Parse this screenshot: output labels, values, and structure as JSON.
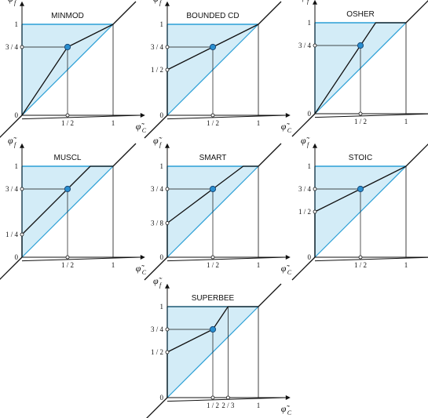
{
  "axes": {
    "x_label": "φ̃",
    "x_sub": "C",
    "y_label": "φ̃",
    "y_sub": "f"
  },
  "colors": {
    "region_fill": "#d3ecf7",
    "region_edge": "#2a9fd6",
    "limiter_line": "#111111",
    "point_fill": "#2a8fd0",
    "point_stroke": "#1a4a78"
  },
  "panels": [
    {
      "title": "MINMOD",
      "x_ticks": [
        {
          "label": "1 / 2",
          "value": 0.5
        },
        {
          "label": "1",
          "value": 1
        }
      ],
      "y_ticks": [
        {
          "label": "0",
          "value": 0
        },
        {
          "label": "3 / 4",
          "value": 0.75
        },
        {
          "label": "1",
          "value": 1
        }
      ],
      "limiter": [
        [
          -0.25,
          -0.25
        ],
        [
          0,
          0
        ],
        [
          0.5,
          0.75
        ],
        [
          1,
          1
        ],
        [
          1.25,
          1.25
        ]
      ],
      "point": [
        0.5,
        0.75
      ],
      "guides": [
        [
          0.5,
          0.75
        ]
      ],
      "x_markers": [
        0.5
      ],
      "y_markers": [
        0.75
      ]
    },
    {
      "title": "BOUNDED CD",
      "x_ticks": [
        {
          "label": "1 / 2",
          "value": 0.5
        },
        {
          "label": "1",
          "value": 1
        }
      ],
      "y_ticks": [
        {
          "label": "0",
          "value": 0
        },
        {
          "label": "1 / 2",
          "value": 0.5
        },
        {
          "label": "3 / 4",
          "value": 0.75
        },
        {
          "label": "1",
          "value": 1
        }
      ],
      "limiter": [
        [
          -0.25,
          -0.25
        ],
        [
          0,
          0
        ],
        [
          0,
          0.5
        ],
        [
          0.5,
          0.75
        ],
        [
          1,
          1
        ],
        [
          1.25,
          1.25
        ]
      ],
      "point": [
        0.5,
        0.75
      ],
      "guides": [
        [
          0.5,
          0.75
        ]
      ],
      "x_markers": [
        0.5
      ],
      "y_markers": [
        0.5,
        0.75
      ]
    },
    {
      "title": "OSHER",
      "x_ticks": [
        {
          "label": "1 / 2",
          "value": 0.5
        },
        {
          "label": "1",
          "value": 1
        }
      ],
      "y_ticks": [
        {
          "label": "0",
          "value": 0
        },
        {
          "label": "3 / 4",
          "value": 0.75
        },
        {
          "label": "1",
          "value": 1
        }
      ],
      "limiter": [
        [
          -0.25,
          -0.25
        ],
        [
          0,
          0
        ],
        [
          0.5,
          0.75
        ],
        [
          0.667,
          1
        ],
        [
          1,
          1
        ],
        [
          1.25,
          1.25
        ]
      ],
      "point": [
        0.5,
        0.75
      ],
      "guides": [
        [
          0.5,
          0.75
        ]
      ],
      "x_markers": [
        0.5
      ],
      "y_markers": [
        0.75
      ]
    },
    {
      "title": "MUSCL",
      "x_ticks": [
        {
          "label": "1 / 2",
          "value": 0.5
        },
        {
          "label": "1",
          "value": 1
        }
      ],
      "y_ticks": [
        {
          "label": "0",
          "value": 0
        },
        {
          "label": "1 / 4",
          "value": 0.25
        },
        {
          "label": "3 / 4",
          "value": 0.75
        },
        {
          "label": "1",
          "value": 1
        }
      ],
      "limiter": [
        [
          -0.25,
          -0.25
        ],
        [
          0,
          0
        ],
        [
          0,
          0.25
        ],
        [
          0.5,
          0.75
        ],
        [
          0.75,
          1
        ],
        [
          1,
          1
        ],
        [
          1.25,
          1.25
        ]
      ],
      "point": [
        0.5,
        0.75
      ],
      "guides": [
        [
          0.5,
          0.75
        ]
      ],
      "x_markers": [
        0.5
      ],
      "y_markers": [
        0.25,
        0.75
      ]
    },
    {
      "title": "SMART",
      "x_ticks": [
        {
          "label": "1 / 2",
          "value": 0.5
        },
        {
          "label": "1",
          "value": 1
        }
      ],
      "y_ticks": [
        {
          "label": "0",
          "value": 0
        },
        {
          "label": "3 / 8",
          "value": 0.375
        },
        {
          "label": "3 / 4",
          "value": 0.75
        },
        {
          "label": "1",
          "value": 1
        }
      ],
      "limiter": [
        [
          -0.25,
          -0.25
        ],
        [
          0,
          0
        ],
        [
          0,
          0.375
        ],
        [
          0.5,
          0.75
        ],
        [
          0.833,
          1
        ],
        [
          1,
          1
        ],
        [
          1.25,
          1.25
        ]
      ],
      "point": [
        0.5,
        0.75
      ],
      "guides": [
        [
          0.5,
          0.75
        ]
      ],
      "x_markers": [
        0.5
      ],
      "y_markers": [
        0.375,
        0.75
      ]
    },
    {
      "title": "STOIC",
      "x_ticks": [
        {
          "label": "1 / 2",
          "value": 0.5
        },
        {
          "label": "1",
          "value": 1
        }
      ],
      "y_ticks": [
        {
          "label": "0",
          "value": 0
        },
        {
          "label": "1 / 2",
          "value": 0.5
        },
        {
          "label": "3 / 4",
          "value": 0.75
        },
        {
          "label": "1",
          "value": 1
        }
      ],
      "limiter": [
        [
          -0.25,
          -0.25
        ],
        [
          0,
          0
        ],
        [
          0,
          0.5
        ],
        [
          0.5,
          0.75
        ],
        [
          1,
          1
        ],
        [
          1.25,
          1.25
        ]
      ],
      "point": [
        0.5,
        0.75
      ],
      "guides": [
        [
          0.5,
          0.75
        ]
      ],
      "x_markers": [
        0.5
      ],
      "y_markers": [
        0.5,
        0.75
      ]
    },
    {
      "title": "SUPERBEE",
      "x_ticks": [
        {
          "label": "1 / 2",
          "value": 0.5
        },
        {
          "label": "2 / 3",
          "value": 0.667
        },
        {
          "label": "1",
          "value": 1
        }
      ],
      "y_ticks": [
        {
          "label": "0",
          "value": 0
        },
        {
          "label": "1 / 2",
          "value": 0.5
        },
        {
          "label": "3 / 4",
          "value": 0.75
        },
        {
          "label": "1",
          "value": 1
        }
      ],
      "limiter": [
        [
          -0.25,
          -0.25
        ],
        [
          0,
          0
        ],
        [
          0,
          0.5
        ],
        [
          0.5,
          0.75
        ],
        [
          0.667,
          1
        ],
        [
          1,
          1
        ],
        [
          1.25,
          1.25
        ]
      ],
      "point": [
        0.5,
        0.75
      ],
      "guides": [
        [
          0.5,
          0.75
        ],
        [
          0.667,
          1
        ]
      ],
      "x_markers": [
        0.5,
        0.667
      ],
      "y_markers": [
        0.5,
        0.75
      ]
    }
  ]
}
